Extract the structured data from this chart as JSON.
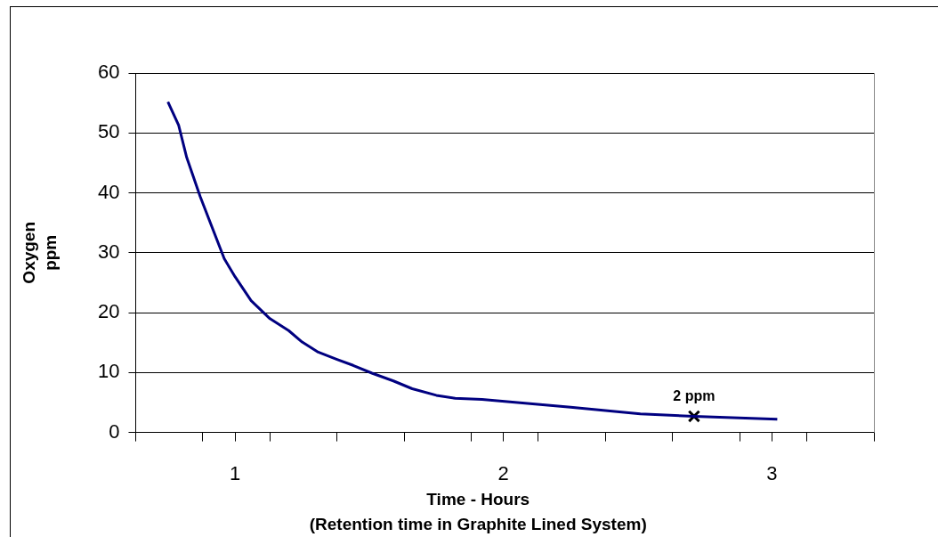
{
  "chart_data": {
    "type": "line",
    "xlabel": "Time - Hours\n(Retention time in Graphite Lined System)",
    "ylabel": "Oxygen\nppm",
    "xlim": [
      0.63,
      3.38
    ],
    "xticks": [
      {
        "value": 0.63,
        "label": null
      },
      {
        "value": 0.88,
        "label": null
      },
      1,
      {
        "value": 1.13,
        "label": null
      },
      {
        "value": 1.38,
        "label": null
      },
      {
        "value": 1.63,
        "label": null
      },
      {
        "value": 1.88,
        "label": null
      },
      2,
      {
        "value": 2.13,
        "label": null
      },
      {
        "value": 2.38,
        "label": null
      },
      {
        "value": 2.63,
        "label": null
      },
      {
        "value": 2.88,
        "label": null
      },
      3,
      {
        "value": 3.13,
        "label": null
      },
      {
        "value": 3.38,
        "label": null
      }
    ],
    "ylim": [
      0,
      60
    ],
    "yticks": [
      0,
      10,
      20,
      30,
      40,
      50,
      60
    ],
    "grid": "y",
    "legend": false,
    "marker": "none",
    "line_style": "solid",
    "series": [
      {
        "color": "#000080",
        "x": [
          0.75,
          0.79,
          0.82,
          0.87,
          0.96,
          1.0,
          1.06,
          1.13,
          1.2,
          1.25,
          1.31,
          1.38,
          1.44,
          1.51,
          1.59,
          1.66,
          1.75,
          1.82,
          1.92,
          2.25,
          2.51,
          2.71,
          3.02
        ],
        "values": [
          55.2,
          51.3,
          45.9,
          39.4,
          29.0,
          26.0,
          22.0,
          19.0,
          17.0,
          15.1,
          13.4,
          12.2,
          11.2,
          9.9,
          8.6,
          7.3,
          6.2,
          5.7,
          5.5,
          4.2,
          3.1,
          2.7,
          2.2
        ]
      },
      {
        "type": "scatter",
        "color": "#000000",
        "marker": "cross",
        "x": [
          2.71
        ],
        "values": [
          2.7
        ]
      }
    ],
    "annotations": [
      {
        "text": "2 ppm",
        "x": 2.71,
        "y": 2.7
      }
    ]
  }
}
